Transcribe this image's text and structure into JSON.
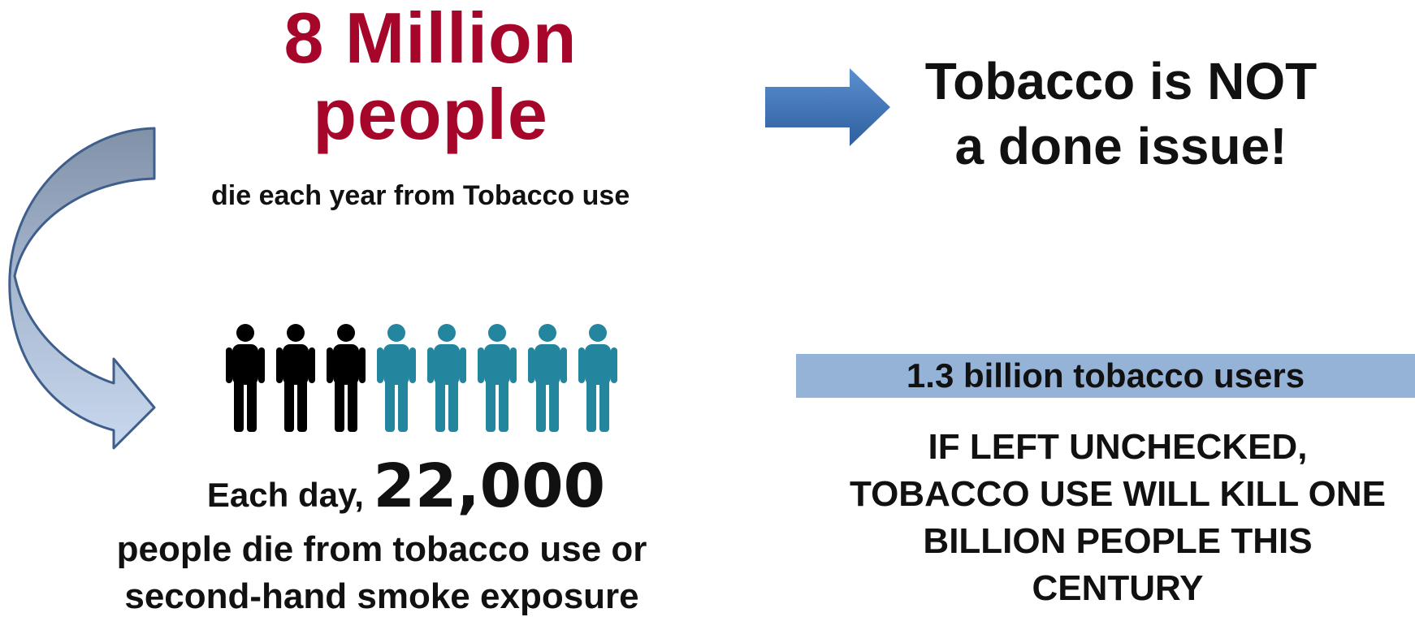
{
  "headline": {
    "line1": "8 Million",
    "line2": "people",
    "color": "#a6062a"
  },
  "yearly_subtitle": "die each year from Tobacco use",
  "callout": {
    "line1": "Tobacco is NOT",
    "line2": "a done issue!"
  },
  "daily": {
    "prefix": "Each day, ",
    "number": "22,000",
    "line2": "people die from tobacco use or",
    "line3": "second-hand smoke exposure"
  },
  "people_icons": {
    "icon": "person-icon",
    "dark_count": 3,
    "teal_count": 5,
    "dark_color": "#000000",
    "teal_color": "#23869e"
  },
  "users_banner": {
    "text": "1.3 billion tobacco users",
    "color": "#95b3d7"
  },
  "warning": {
    "line1": "IF LEFT UNCHECKED,",
    "line2": "TOBACCO USE WILL KILL ONE",
    "line3": "BILLION PEOPLE THIS",
    "line4": "CENTURY"
  },
  "arrows": {
    "right_arrow_icon": "arrow-right-icon",
    "curved_arrow_icon": "curved-arrow-down-icon",
    "arrow_color": "#3f74b8"
  }
}
